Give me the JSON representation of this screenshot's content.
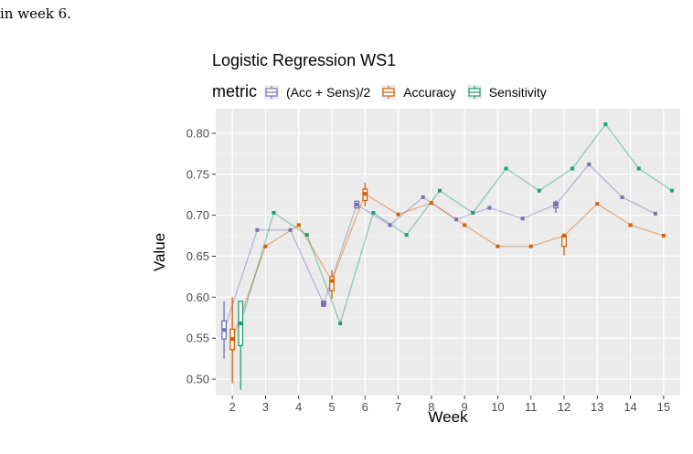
{
  "caption": "in week 6.",
  "chart_data": {
    "type": "line",
    "title": "Logistic Regression WS1",
    "xlabel": "Week",
    "ylabel": "Value",
    "legend_title": "metric",
    "legend_position": "top",
    "grid": true,
    "x_ticks": [
      2,
      3,
      4,
      5,
      6,
      7,
      8,
      9,
      10,
      11,
      12,
      13,
      14,
      15
    ],
    "y_ticks": [
      "0.50",
      "0.55",
      "0.60",
      "0.65",
      "0.70",
      "0.75",
      "0.80"
    ],
    "xlim": [
      1.5,
      15.5
    ],
    "ylim": [
      0.48,
      0.83
    ],
    "series": [
      {
        "name": "(Acc + Sens)/2",
        "color": "#7570b3",
        "offset": -0.25,
        "points": [
          [
            2,
            0.56
          ],
          [
            3,
            0.682
          ],
          [
            4,
            0.682
          ],
          [
            5,
            0.592
          ],
          [
            6,
            0.713
          ],
          [
            7,
            0.688
          ],
          [
            8,
            0.722
          ],
          [
            9,
            0.695
          ],
          [
            10,
            0.709
          ],
          [
            11,
            0.696
          ],
          [
            12,
            0.713
          ],
          [
            13,
            0.762
          ],
          [
            14,
            0.722
          ],
          [
            15,
            0.702
          ]
        ],
        "boxes": [
          {
            "week": 2,
            "min": 0.525,
            "q1": 0.549,
            "q3": 0.571,
            "max": 0.595
          },
          {
            "week": 5,
            "min": 0.588,
            "q1": 0.589,
            "q3": 0.595,
            "max": 0.596
          },
          {
            "week": 6,
            "min": 0.708,
            "q1": 0.709,
            "q3": 0.717,
            "max": 0.718
          },
          {
            "week": 12,
            "min": 0.703,
            "q1": 0.709,
            "q3": 0.716,
            "max": 0.718
          }
        ]
      },
      {
        "name": "Accuracy",
        "color": "#d95f02",
        "offset": 0.0,
        "points": [
          [
            2,
            0.549
          ],
          [
            3,
            0.662
          ],
          [
            4,
            0.688
          ],
          [
            5,
            0.62
          ],
          [
            6,
            0.726
          ],
          [
            7,
            0.701
          ],
          [
            8,
            0.715
          ],
          [
            9,
            0.688
          ],
          [
            10,
            0.662
          ],
          [
            11,
            0.662
          ],
          [
            12,
            0.675
          ],
          [
            13,
            0.714
          ],
          [
            14,
            0.688
          ],
          [
            15,
            0.675
          ]
        ],
        "boxes": [
          {
            "week": 2,
            "min": 0.495,
            "q1": 0.536,
            "q3": 0.561,
            "max": 0.6
          },
          {
            "week": 5,
            "min": 0.598,
            "q1": 0.608,
            "q3": 0.625,
            "max": 0.633
          },
          {
            "week": 6,
            "min": 0.711,
            "q1": 0.718,
            "q3": 0.732,
            "max": 0.74
          },
          {
            "week": 12,
            "min": 0.651,
            "q1": 0.662,
            "q3": 0.675,
            "max": 0.678
          }
        ]
      },
      {
        "name": "Sensitivity",
        "color": "#1b9e77",
        "offset": 0.25,
        "points": [
          [
            2,
            0.568
          ],
          [
            3,
            0.703
          ],
          [
            4,
            0.676
          ],
          [
            5,
            0.568
          ],
          [
            6,
            0.703
          ],
          [
            7,
            0.676
          ],
          [
            8,
            0.73
          ],
          [
            9,
            0.703
          ],
          [
            10,
            0.757
          ],
          [
            11,
            0.73
          ],
          [
            12,
            0.757
          ],
          [
            13,
            0.811
          ],
          [
            14,
            0.757
          ],
          [
            15,
            0.73
          ]
        ],
        "boxes": [
          {
            "week": 2,
            "min": 0.487,
            "q1": 0.541,
            "q3": 0.595,
            "max": 0.595
          }
        ]
      }
    ]
  }
}
